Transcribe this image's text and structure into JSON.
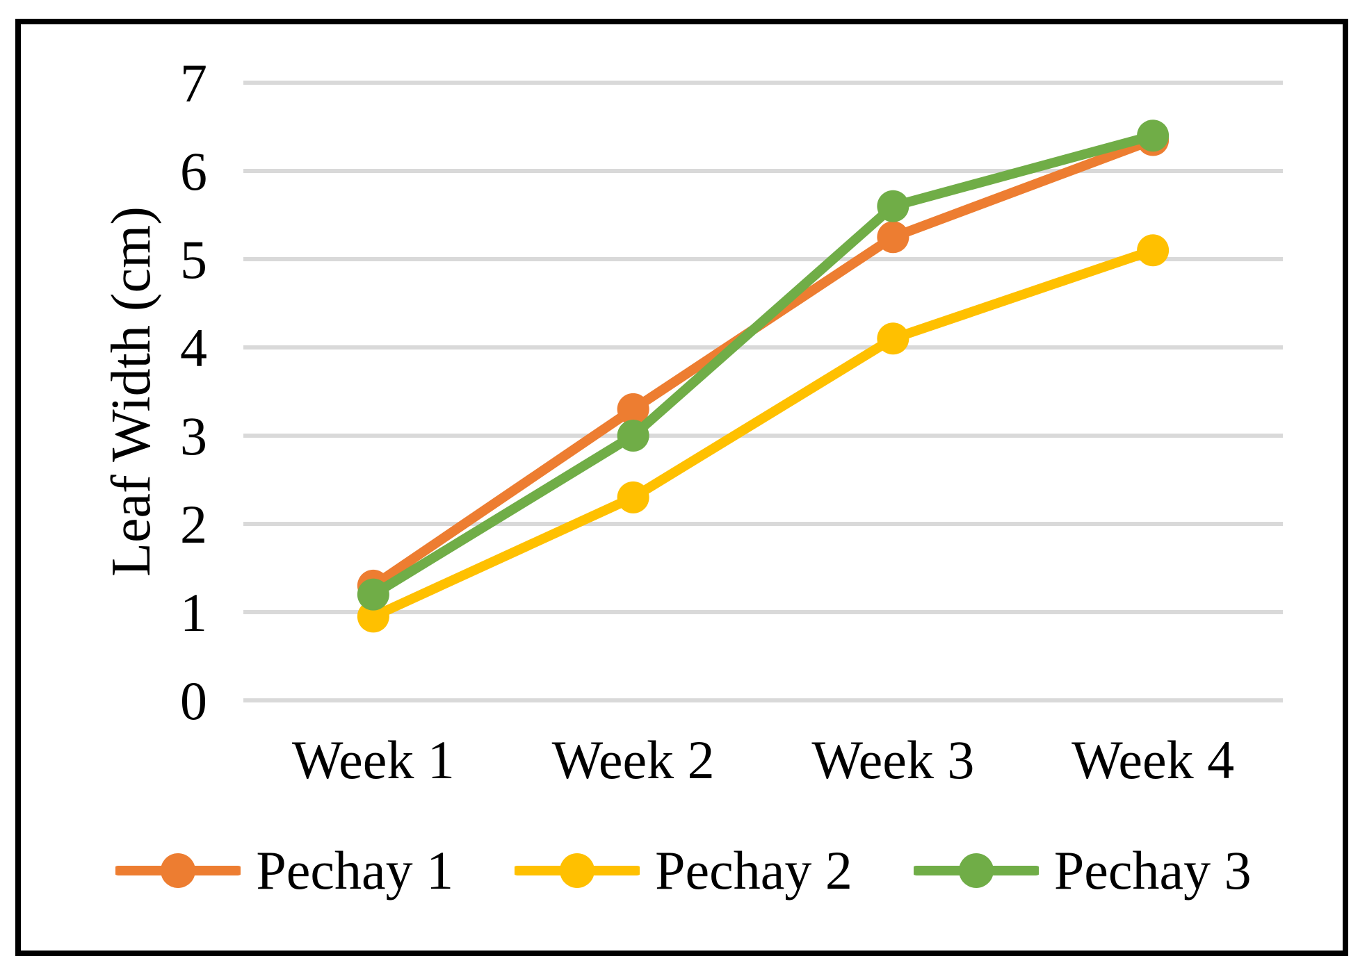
{
  "chart_data": {
    "type": "line",
    "title": "",
    "xlabel": "",
    "ylabel": "Leaf Width (cm)",
    "categories": [
      "Week 1",
      "Week 2",
      "Week 3",
      "Week 4"
    ],
    "series": [
      {
        "name": "Pechay 1",
        "color": "#ED7D31",
        "values": [
          1.3,
          3.3,
          5.25,
          6.35
        ]
      },
      {
        "name": "Pechay 2",
        "color": "#FFC000",
        "values": [
          0.95,
          2.3,
          4.1,
          5.1
        ]
      },
      {
        "name": "Pechay 3",
        "color": "#70AD47",
        "values": [
          1.2,
          3.0,
          5.6,
          6.4
        ]
      }
    ],
    "ylim": [
      0,
      7
    ],
    "yticks": [
      0,
      1,
      2,
      3,
      4,
      5,
      6,
      7
    ],
    "grid": "horizontal",
    "gridline_color": "#D9D9D9",
    "legend_position": "bottom",
    "text_color": "#000000",
    "frame_color": "#000000",
    "background_color": "#FFFFFF"
  }
}
